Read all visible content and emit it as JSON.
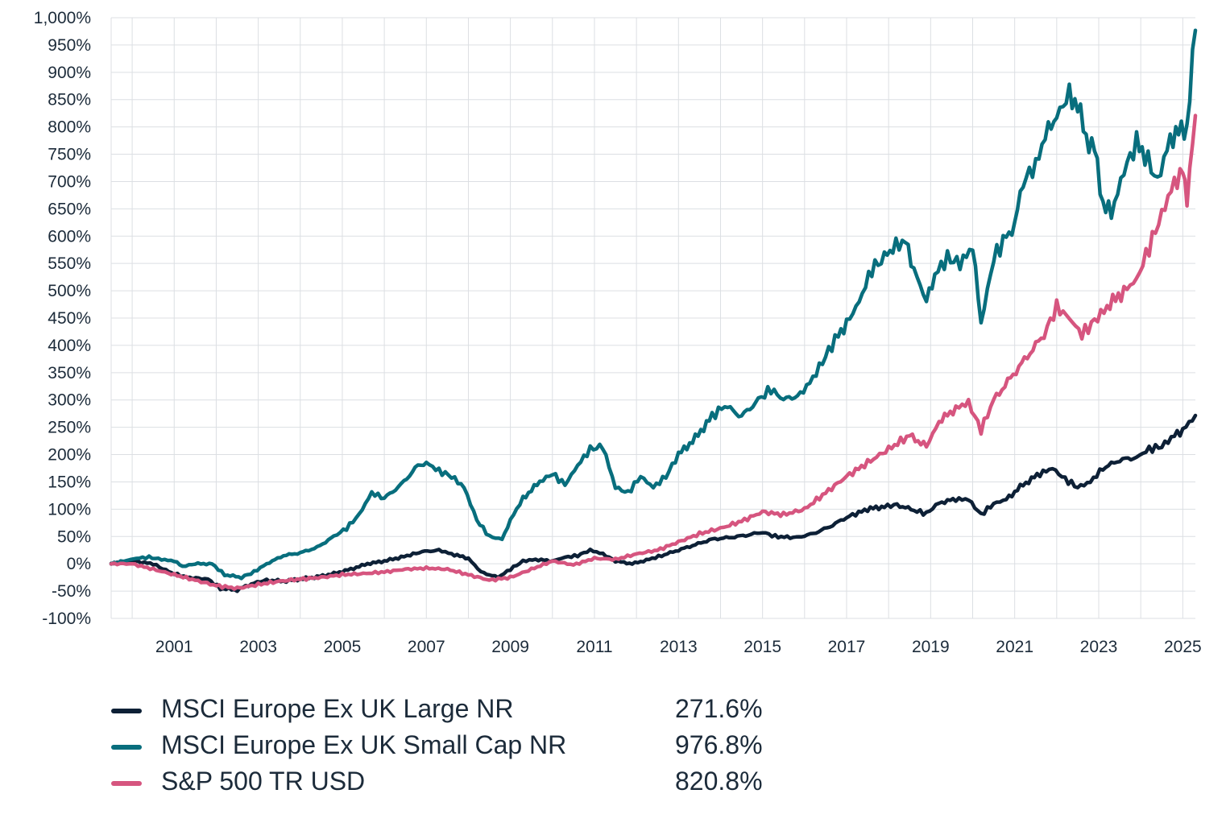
{
  "chart_data": {
    "type": "line",
    "title": "",
    "xlabel": "",
    "ylabel": "",
    "ylim": [
      -100,
      1000
    ],
    "xlim": [
      1999.5,
      2025.3
    ],
    "y_ticks": [
      1000,
      950,
      900,
      850,
      800,
      750,
      700,
      650,
      600,
      550,
      500,
      450,
      400,
      350,
      300,
      250,
      200,
      150,
      100,
      50,
      0,
      -50,
      -100
    ],
    "y_tick_labels": [
      "1,000%",
      "950%",
      "900%",
      "850%",
      "800%",
      "750%",
      "700%",
      "650%",
      "600%",
      "550%",
      "500%",
      "450%",
      "400%",
      "350%",
      "300%",
      "250%",
      "200%",
      "150%",
      "100%",
      "50%",
      "0%",
      "-50%",
      "-100%"
    ],
    "x_ticks": [
      2001,
      2003,
      2005,
      2007,
      2009,
      2011,
      2013,
      2015,
      2017,
      2019,
      2021,
      2023,
      2025
    ],
    "x_tick_labels": [
      "2001",
      "2003",
      "2005",
      "2007",
      "2009",
      "2011",
      "2013",
      "2015",
      "2017",
      "2019",
      "2021",
      "2023",
      "2025"
    ],
    "grid": true,
    "legend_position": "bottom",
    "series": [
      {
        "name": "MSCI Europe Ex UK Large NR",
        "color": "#0d2036",
        "final_label": "271.6%",
        "points": [
          [
            1999.5,
            0
          ],
          [
            2000.0,
            5
          ],
          [
            2000.5,
            0
          ],
          [
            2000.8,
            -12
          ],
          [
            2001.0,
            -18
          ],
          [
            2001.3,
            -25
          ],
          [
            2001.8,
            -28
          ],
          [
            2002.1,
            -45
          ],
          [
            2002.5,
            -48
          ],
          [
            2002.9,
            -35
          ],
          [
            2003.2,
            -30
          ],
          [
            2003.6,
            -32
          ],
          [
            2004.0,
            -28
          ],
          [
            2004.4,
            -24
          ],
          [
            2004.8,
            -18
          ],
          [
            2005.2,
            -10
          ],
          [
            2005.6,
            0
          ],
          [
            2006.0,
            5
          ],
          [
            2006.4,
            12
          ],
          [
            2006.9,
            22
          ],
          [
            2007.3,
            25
          ],
          [
            2007.6,
            18
          ],
          [
            2008.0,
            10
          ],
          [
            2008.3,
            -15
          ],
          [
            2008.7,
            -25
          ],
          [
            2009.0,
            -10
          ],
          [
            2009.3,
            5
          ],
          [
            2009.6,
            8
          ],
          [
            2010.0,
            5
          ],
          [
            2010.3,
            12
          ],
          [
            2010.6,
            15
          ],
          [
            2010.9,
            25
          ],
          [
            2011.2,
            18
          ],
          [
            2011.5,
            5
          ],
          [
            2011.9,
            0
          ],
          [
            2012.3,
            8
          ],
          [
            2012.6,
            15
          ],
          [
            2013.0,
            25
          ],
          [
            2013.4,
            35
          ],
          [
            2013.8,
            45
          ],
          [
            2014.2,
            48
          ],
          [
            2014.6,
            52
          ],
          [
            2015.0,
            58
          ],
          [
            2015.3,
            50
          ],
          [
            2015.8,
            48
          ],
          [
            2016.2,
            55
          ],
          [
            2016.6,
            68
          ],
          [
            2017.0,
            85
          ],
          [
            2017.5,
            100
          ],
          [
            2017.9,
            105
          ],
          [
            2018.2,
            108
          ],
          [
            2018.6,
            98
          ],
          [
            2018.9,
            92
          ],
          [
            2019.2,
            112
          ],
          [
            2019.6,
            118
          ],
          [
            2019.9,
            118
          ],
          [
            2020.2,
            90
          ],
          [
            2020.5,
            110
          ],
          [
            2020.8,
            118
          ],
          [
            2021.2,
            145
          ],
          [
            2021.6,
            165
          ],
          [
            2021.9,
            175
          ],
          [
            2022.2,
            155
          ],
          [
            2022.5,
            140
          ],
          [
            2022.8,
            150
          ],
          [
            2023.1,
            175
          ],
          [
            2023.5,
            190
          ],
          [
            2023.9,
            195
          ],
          [
            2024.2,
            210
          ],
          [
            2024.5,
            215
          ],
          [
            2024.8,
            235
          ],
          [
            2025.0,
            245
          ],
          [
            2025.3,
            271.6
          ]
        ]
      },
      {
        "name": "MSCI Europe Ex UK Small Cap NR",
        "color": "#086e7d",
        "final_label": "976.8%",
        "points": [
          [
            1999.5,
            0
          ],
          [
            1999.8,
            5
          ],
          [
            2000.1,
            10
          ],
          [
            2000.4,
            12
          ],
          [
            2000.7,
            8
          ],
          [
            2001.0,
            5
          ],
          [
            2001.2,
            -5
          ],
          [
            2001.5,
            0
          ],
          [
            2001.9,
            0
          ],
          [
            2002.2,
            -20
          ],
          [
            2002.6,
            -25
          ],
          [
            2002.9,
            -15
          ],
          [
            2003.2,
            0
          ],
          [
            2003.6,
            15
          ],
          [
            2004.0,
            20
          ],
          [
            2004.4,
            30
          ],
          [
            2004.8,
            50
          ],
          [
            2005.1,
            65
          ],
          [
            2005.4,
            90
          ],
          [
            2005.7,
            130
          ],
          [
            2006.0,
            120
          ],
          [
            2006.4,
            145
          ],
          [
            2006.8,
            180
          ],
          [
            2007.0,
            185
          ],
          [
            2007.3,
            170
          ],
          [
            2007.6,
            160
          ],
          [
            2007.9,
            140
          ],
          [
            2008.2,
            80
          ],
          [
            2008.5,
            50
          ],
          [
            2008.8,
            45
          ],
          [
            2009.0,
            80
          ],
          [
            2009.3,
            120
          ],
          [
            2009.7,
            150
          ],
          [
            2010.0,
            165
          ],
          [
            2010.3,
            145
          ],
          [
            2010.6,
            180
          ],
          [
            2010.9,
            210
          ],
          [
            2011.2,
            215
          ],
          [
            2011.5,
            140
          ],
          [
            2011.8,
            130
          ],
          [
            2012.1,
            160
          ],
          [
            2012.4,
            140
          ],
          [
            2012.7,
            160
          ],
          [
            2013.0,
            200
          ],
          [
            2013.4,
            230
          ],
          [
            2013.8,
            270
          ],
          [
            2014.1,
            290
          ],
          [
            2014.5,
            270
          ],
          [
            2014.9,
            300
          ],
          [
            2015.2,
            320
          ],
          [
            2015.5,
            300
          ],
          [
            2015.9,
            310
          ],
          [
            2016.2,
            340
          ],
          [
            2016.5,
            380
          ],
          [
            2016.8,
            420
          ],
          [
            2017.0,
            440
          ],
          [
            2017.3,
            480
          ],
          [
            2017.6,
            540
          ],
          [
            2017.9,
            560
          ],
          [
            2018.1,
            580
          ],
          [
            2018.4,
            590
          ],
          [
            2018.6,
            540
          ],
          [
            2018.9,
            480
          ],
          [
            2019.1,
            530
          ],
          [
            2019.4,
            560
          ],
          [
            2019.7,
            550
          ],
          [
            2020.0,
            580
          ],
          [
            2020.2,
            440
          ],
          [
            2020.5,
            560
          ],
          [
            2020.8,
            600
          ],
          [
            2021.0,
            620
          ],
          [
            2021.2,
            700
          ],
          [
            2021.5,
            730
          ],
          [
            2021.8,
            800
          ],
          [
            2022.0,
            820
          ],
          [
            2022.3,
            860
          ],
          [
            2022.5,
            840
          ],
          [
            2022.7,
            780
          ],
          [
            2022.9,
            760
          ],
          [
            2023.1,
            660
          ],
          [
            2023.3,
            640
          ],
          [
            2023.6,
            720
          ],
          [
            2023.9,
            770
          ],
          [
            2024.1,
            750
          ],
          [
            2024.4,
            700
          ],
          [
            2024.7,
            780
          ],
          [
            2024.9,
            790
          ],
          [
            2025.1,
            800
          ],
          [
            2025.3,
            976.8
          ]
        ]
      },
      {
        "name": "S&P 500 TR USD",
        "color": "#d6557f",
        "final_label": "820.8%",
        "points": [
          [
            1999.5,
            0
          ],
          [
            2000.0,
            0
          ],
          [
            2000.5,
            -10
          ],
          [
            2001.0,
            -20
          ],
          [
            2001.5,
            -30
          ],
          [
            2002.0,
            -40
          ],
          [
            2002.5,
            -45
          ],
          [
            2003.0,
            -38
          ],
          [
            2003.5,
            -32
          ],
          [
            2004.0,
            -28
          ],
          [
            2004.5,
            -25
          ],
          [
            2005.0,
            -20
          ],
          [
            2005.5,
            -18
          ],
          [
            2006.0,
            -15
          ],
          [
            2006.5,
            -10
          ],
          [
            2007.0,
            -8
          ],
          [
            2007.5,
            -10
          ],
          [
            2008.0,
            -20
          ],
          [
            2008.5,
            -30
          ],
          [
            2009.0,
            -25
          ],
          [
            2009.5,
            -10
          ],
          [
            2010.0,
            5
          ],
          [
            2010.5,
            -2
          ],
          [
            2011.0,
            10
          ],
          [
            2011.5,
            8
          ],
          [
            2012.0,
            18
          ],
          [
            2012.5,
            25
          ],
          [
            2013.0,
            40
          ],
          [
            2013.5,
            55
          ],
          [
            2014.0,
            65
          ],
          [
            2014.5,
            78
          ],
          [
            2015.0,
            95
          ],
          [
            2015.5,
            90
          ],
          [
            2016.0,
            100
          ],
          [
            2016.5,
            130
          ],
          [
            2017.0,
            160
          ],
          [
            2017.5,
            185
          ],
          [
            2018.0,
            210
          ],
          [
            2018.5,
            235
          ],
          [
            2018.9,
            215
          ],
          [
            2019.2,
            260
          ],
          [
            2019.6,
            285
          ],
          [
            2019.9,
            295
          ],
          [
            2020.2,
            245
          ],
          [
            2020.5,
            300
          ],
          [
            2020.9,
            340
          ],
          [
            2021.3,
            380
          ],
          [
            2021.7,
            420
          ],
          [
            2022.0,
            470
          ],
          [
            2022.3,
            450
          ],
          [
            2022.6,
            420
          ],
          [
            2022.9,
            445
          ],
          [
            2023.2,
            470
          ],
          [
            2023.6,
            500
          ],
          [
            2023.9,
            520
          ],
          [
            2024.2,
            580
          ],
          [
            2024.5,
            640
          ],
          [
            2024.8,
            700
          ],
          [
            2025.0,
            720
          ],
          [
            2025.1,
            660
          ],
          [
            2025.3,
            820.8
          ]
        ]
      }
    ]
  }
}
